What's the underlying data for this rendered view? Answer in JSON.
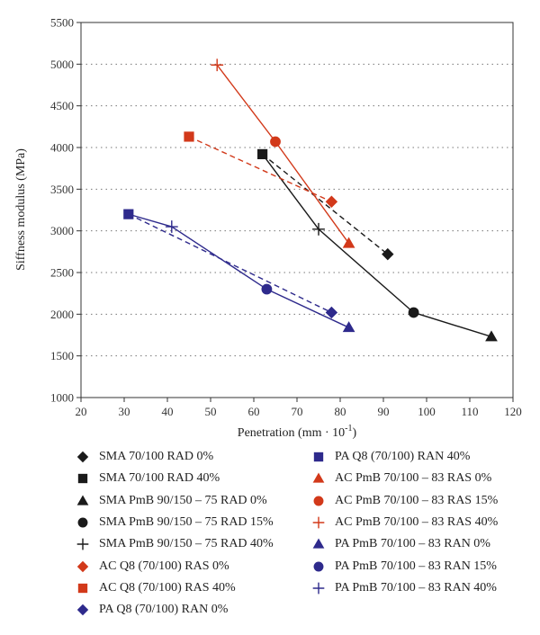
{
  "chart_data": {
    "type": "line",
    "title": "",
    "xlabel": "Penetration (mm · 10",
    "xlabel_sup": "-1",
    "xlabel_close": ")",
    "ylabel": "Siffness modulus (MPa)",
    "xlim": [
      20,
      120
    ],
    "ylim": [
      1000,
      5500
    ],
    "xticks": [
      20,
      30,
      40,
      50,
      60,
      70,
      80,
      90,
      100,
      110,
      120
    ],
    "yticks": [
      1000,
      1500,
      2000,
      2500,
      3000,
      3500,
      4000,
      4500,
      5000,
      5500
    ],
    "grid": "horizontal dotted",
    "legend_placement": "bottom",
    "colors": {
      "black": "#1a1a1a",
      "red": "#d2391a",
      "blue": "#2e2a8c"
    },
    "series": [
      {
        "name": "SMA 70/100 RAD 0%",
        "marker": "diamond",
        "color": "black",
        "points": [
          [
            91,
            2720
          ]
        ]
      },
      {
        "name": "SMA 70/100 RAD 40%",
        "marker": "square",
        "color": "black",
        "points": [
          [
            62,
            3920
          ]
        ]
      },
      {
        "name": "SMA PmB 90/150 – 75 RAD 0%",
        "marker": "triangle",
        "color": "black",
        "points": [
          [
            115,
            1730
          ]
        ]
      },
      {
        "name": "SMA PmB 90/150 – 75 RAD 15%",
        "marker": "circle",
        "color": "black",
        "points": [
          [
            97,
            2020
          ]
        ]
      },
      {
        "name": "SMA PmB 90/150 – 75 RAD 40%",
        "marker": "plus",
        "color": "black",
        "points": [
          [
            75,
            3020
          ]
        ]
      },
      {
        "name": "AC Q8 (70/100) RAS 0%",
        "marker": "diamond",
        "color": "red",
        "points": [
          [
            78,
            3350
          ]
        ]
      },
      {
        "name": "AC Q8 (70/100) RAS 40%",
        "marker": "square",
        "color": "red",
        "points": [
          [
            45,
            4130
          ]
        ]
      },
      {
        "name": "PA Q8 (70/100) RAN 0%",
        "marker": "diamond",
        "color": "blue",
        "points": [
          [
            78,
            2020
          ]
        ]
      },
      {
        "name": "PA Q8 (70/100) RAN 40%",
        "marker": "square",
        "color": "blue",
        "points": [
          [
            31,
            3200
          ]
        ]
      },
      {
        "name": "AC PmB 70/100 – 83 RAS 0%",
        "marker": "triangle",
        "color": "red",
        "points": [
          [
            82,
            2850
          ]
        ]
      },
      {
        "name": "AC PmB 70/100 – 83 RAS 15%",
        "marker": "circle",
        "color": "red",
        "points": [
          [
            65,
            4070
          ]
        ]
      },
      {
        "name": "AC PmB 70/100 – 83 RAS 40%",
        "marker": "plus",
        "color": "red",
        "points": [
          [
            51.5,
            4990
          ]
        ]
      },
      {
        "name": "PA PmB 70/100 – 83 RAN 0%",
        "marker": "triangle",
        "color": "blue",
        "points": [
          [
            82,
            1840
          ]
        ]
      },
      {
        "name": "PA PmB 70/100 – 83 RAN 15%",
        "marker": "circle",
        "color": "blue",
        "points": [
          [
            63,
            2300
          ]
        ]
      },
      {
        "name": "PA PmB 70/100 – 83 RAN 40%",
        "marker": "plus",
        "color": "blue",
        "points": [
          [
            41,
            3050
          ]
        ]
      }
    ],
    "lines": [
      {
        "style": "dashed",
        "color": "black",
        "points": [
          [
            62,
            3920
          ],
          [
            91,
            2720
          ]
        ]
      },
      {
        "style": "solid",
        "color": "black",
        "points": [
          [
            62,
            3920
          ],
          [
            75,
            3020
          ],
          [
            97,
            2020
          ],
          [
            115,
            1730
          ]
        ]
      },
      {
        "style": "dashed",
        "color": "red",
        "points": [
          [
            45,
            4130
          ],
          [
            78,
            3350
          ]
        ]
      },
      {
        "style": "solid",
        "color": "red",
        "points": [
          [
            51.5,
            4990
          ],
          [
            65,
            4070
          ],
          [
            82,
            2850
          ]
        ]
      },
      {
        "style": "dashed",
        "color": "blue",
        "points": [
          [
            31,
            3200
          ],
          [
            78,
            2020
          ]
        ]
      },
      {
        "style": "solid",
        "color": "blue",
        "points": [
          [
            31,
            3200
          ],
          [
            41,
            3050
          ],
          [
            63,
            2300
          ],
          [
            82,
            1840
          ]
        ]
      }
    ]
  }
}
